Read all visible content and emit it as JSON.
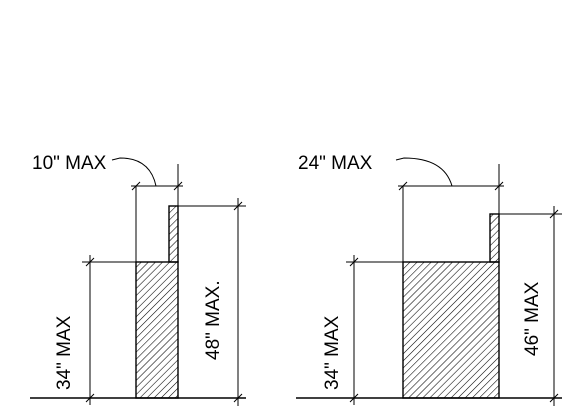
{
  "diagrams": [
    {
      "depth_label": "10\" MAX",
      "low_height_label": "34\" MAX",
      "high_height_label": "48\" MAX."
    },
    {
      "depth_label": "24\" MAX",
      "low_height_label": "34\" MAX",
      "high_height_label": "46\" MAX"
    }
  ]
}
